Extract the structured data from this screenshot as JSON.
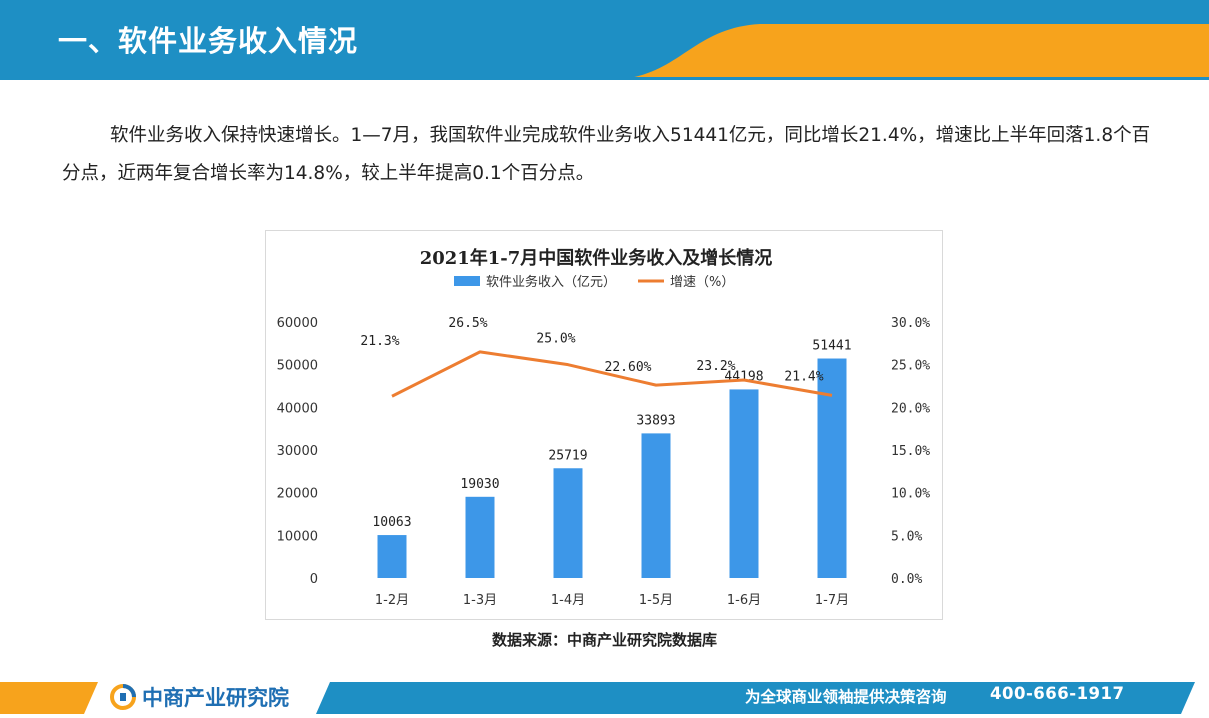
{
  "header": {
    "title": "一、软件业务收入情况"
  },
  "body": {
    "paragraph": "软件业务收入保持快速增长。1—7月，我国软件业完成软件业务收入51441亿元，同比增长21.4%，增速比上半年回落1.8个百分点，近两年复合增长率为14.8%，较上半年提高0.1个百分点。"
  },
  "colors": {
    "header_blue": "#1e8fc4",
    "header_orange": "#f7a31c",
    "bar_blue": "#3d97e8",
    "line_orange": "#ed7d31"
  },
  "chart_data": {
    "type": "bar",
    "title": "2021年1-7月中国软件业务收入及增长情况",
    "categories": [
      "1-2月",
      "1-3月",
      "1-4月",
      "1-5月",
      "1-6月",
      "1-7月"
    ],
    "series": [
      {
        "name": "软件业务收入（亿元）",
        "type": "bar",
        "axis": "left",
        "values": [
          10063,
          19030,
          25719,
          33893,
          44198,
          51441
        ],
        "labels": [
          "10063",
          "19030",
          "25719",
          "33893",
          "44198",
          "51441"
        ]
      },
      {
        "name": "增速（%）",
        "type": "line",
        "axis": "right",
        "values": [
          21.3,
          26.5,
          25.0,
          22.6,
          23.2,
          21.4
        ],
        "labels": [
          "21.3%",
          "26.5%",
          "25.0%",
          "22.60%",
          "23.2%",
          "21.4%"
        ]
      }
    ],
    "y_left": {
      "min": 0,
      "max": 60000,
      "ticks": [
        "0",
        "10000",
        "20000",
        "30000",
        "40000",
        "50000",
        "60000"
      ]
    },
    "y_right": {
      "min": 0,
      "max": 30,
      "ticks": [
        "0.0%",
        "5.0%",
        "10.0%",
        "15.0%",
        "20.0%",
        "25.0%",
        "30.0%"
      ]
    },
    "legend": "top-center",
    "grid": false,
    "source": "数据来源：中商产业研究院数据库"
  },
  "footer": {
    "brand": "中商产业研究院",
    "slogan": "为全球商业领袖提供决策咨询",
    "phone": "400-666-1917"
  }
}
